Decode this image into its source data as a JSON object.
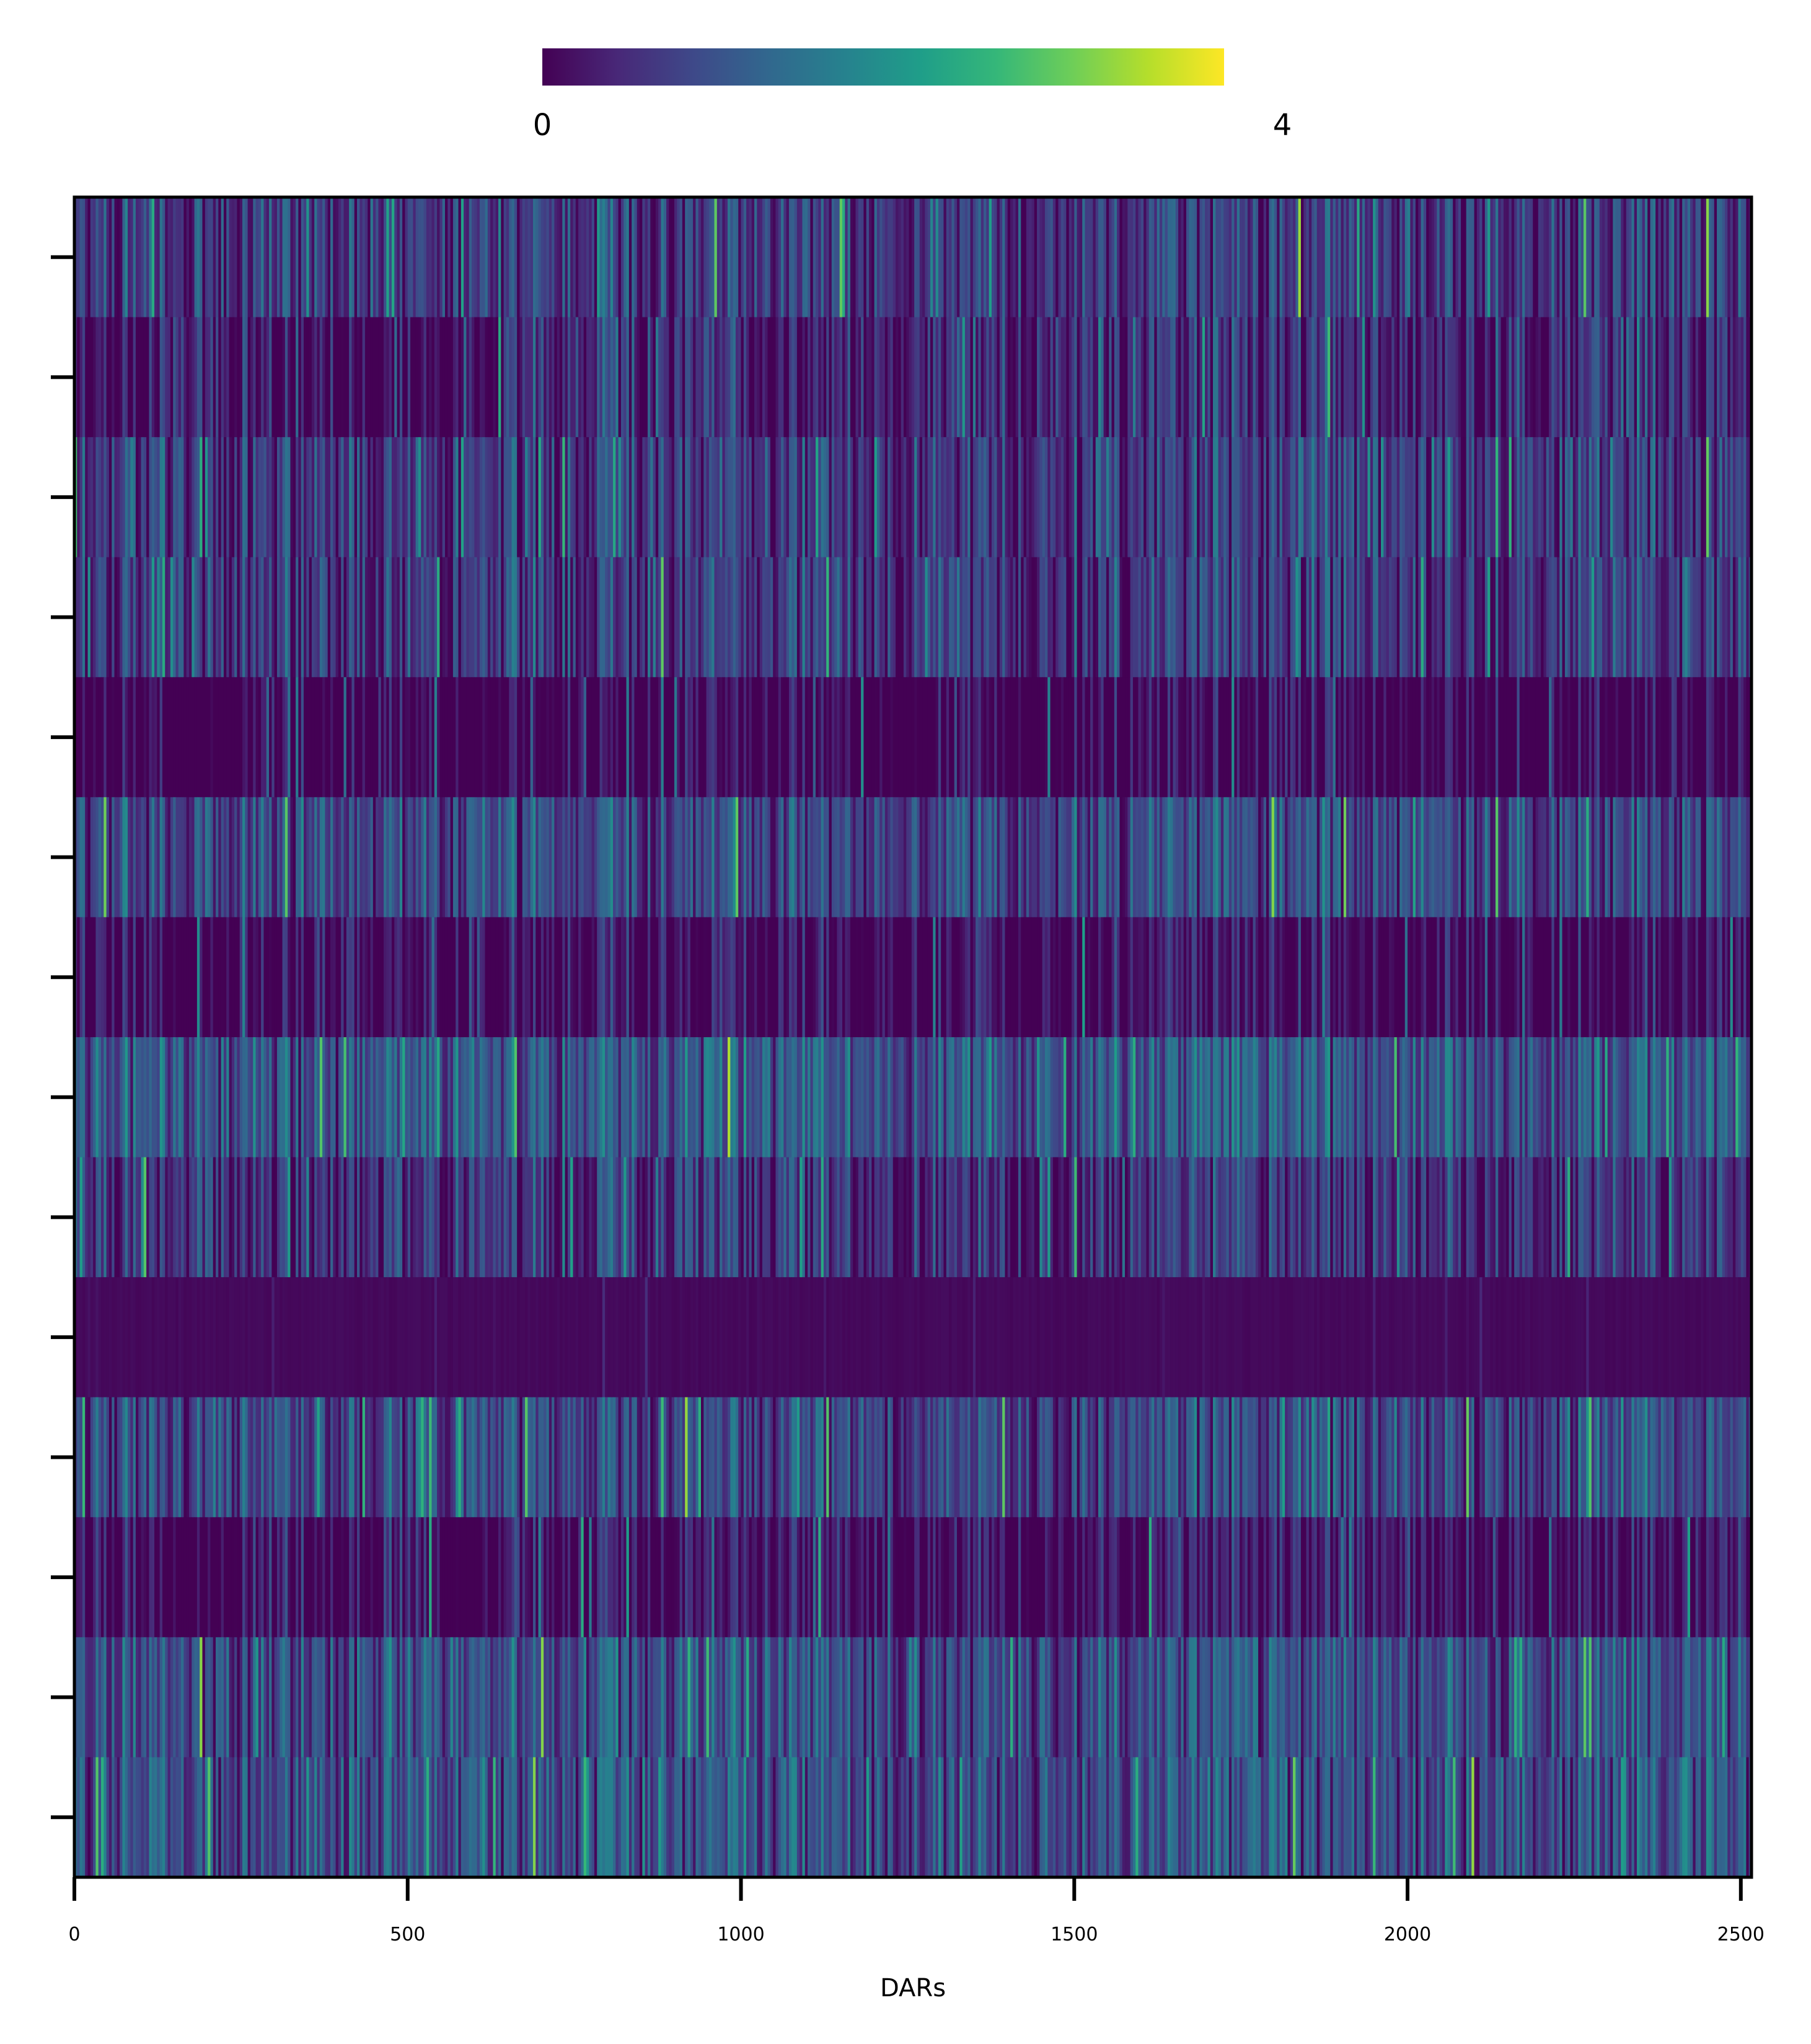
{
  "chart_data": {
    "type": "heatmap",
    "title": "",
    "xlabel": "DARs",
    "ylabel": "",
    "x_range": [
      0,
      2516
    ],
    "x_ticks": [
      0,
      500,
      1000,
      1500,
      2000,
      2500
    ],
    "x_tick_labels": [
      "0",
      "500",
      "1000",
      "1500",
      "2000",
      "2500"
    ],
    "y_tick_labels": [],
    "n_rows": 14,
    "n_columns": 2516,
    "colormap": "viridis",
    "colorbar": {
      "range": [
        0,
        4
      ],
      "tick_labels": [
        "0",
        "4"
      ],
      "placement": "top"
    },
    "row_mean_values": [
      1.4,
      1.2,
      1.4,
      1.4,
      0.6,
      1.6,
      0.8,
      1.8,
      1.3,
      0.05,
      1.6,
      0.9,
      1.7,
      1.7
    ],
    "row_dark_segments": [
      [],
      [
        [
          0,
          130
        ],
        [
          300,
          640
        ],
        [
          1000,
          1130
        ]
      ],
      [],
      [],
      [
        [
          130,
          250
        ],
        [
          550,
          650
        ]
      ],
      [],
      [
        [
          130,
          250
        ],
        [
          550,
          650
        ]
      ],
      [],
      [],
      [],
      [],
      [
        [
          130,
          250
        ],
        [
          550,
          650
        ]
      ],
      [],
      []
    ],
    "grid": false,
    "legend": "none"
  },
  "colors": {
    "axis": "#000000",
    "background": "#ffffff",
    "viridis_stops": [
      "#440154",
      "#482878",
      "#3e4989",
      "#31688e",
      "#26828e",
      "#1f9e89",
      "#35b779",
      "#6ece58",
      "#b5de2b",
      "#fde725"
    ]
  }
}
